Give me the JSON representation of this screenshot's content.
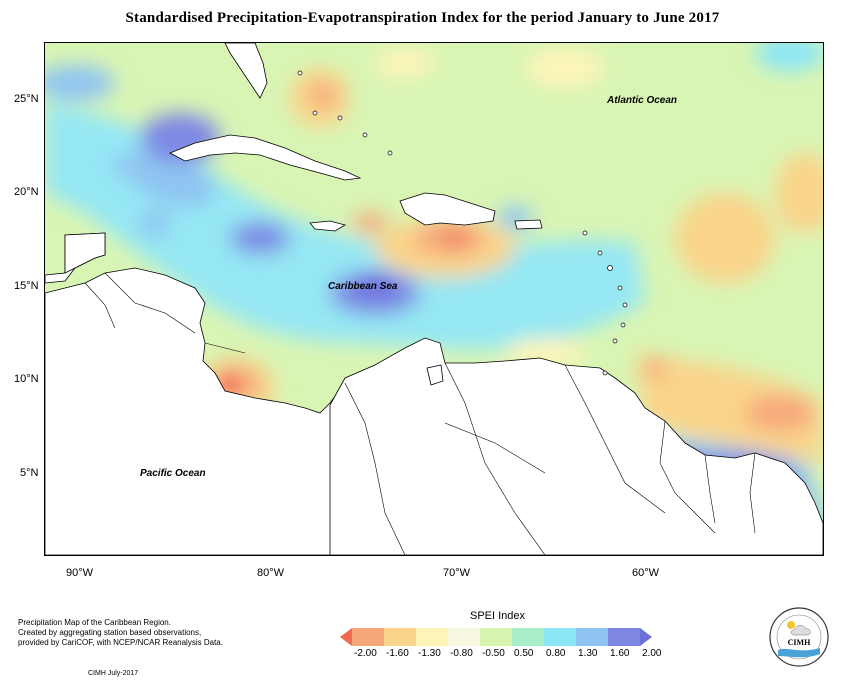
{
  "title": "Standardised Precipitation-Evapotranspiration Index for the period January to June 2017",
  "map": {
    "lat_labels": [
      "25°N",
      "20°N",
      "15°N",
      "10°N",
      "5°N"
    ],
    "lon_labels": [
      "90°W",
      "80°W",
      "70°W",
      "60°W"
    ],
    "regions": [
      {
        "label": "Atlantic Ocean"
      },
      {
        "label": "Caribbean Sea"
      },
      {
        "label": "Pacific Ocean"
      }
    ]
  },
  "legend": {
    "title": "SPEI Index",
    "ticks": [
      "-2.00",
      "-1.60",
      "-1.30",
      "-0.80",
      "-0.50",
      "0.50",
      "0.80",
      "1.30",
      "1.60",
      "2.00"
    ],
    "colors": [
      "#ef6a4e",
      "#f6a77a",
      "#fad48a",
      "#fdf5b8",
      "#f8f8e0",
      "#d6f5b0",
      "#a8eec8",
      "#8be6f6",
      "#8fc4f2",
      "#7e88e4",
      "#6a72d8"
    ]
  },
  "credits": {
    "lines": [
      "Precipitation Map of the Caribbean Region.",
      "Created by aggregating station based observations,",
      "provided by CariCOF, with NCEP/NCAR Reanalysis Data."
    ],
    "date": "CIMH July-2017",
    "logo_text": "CIMH"
  }
}
